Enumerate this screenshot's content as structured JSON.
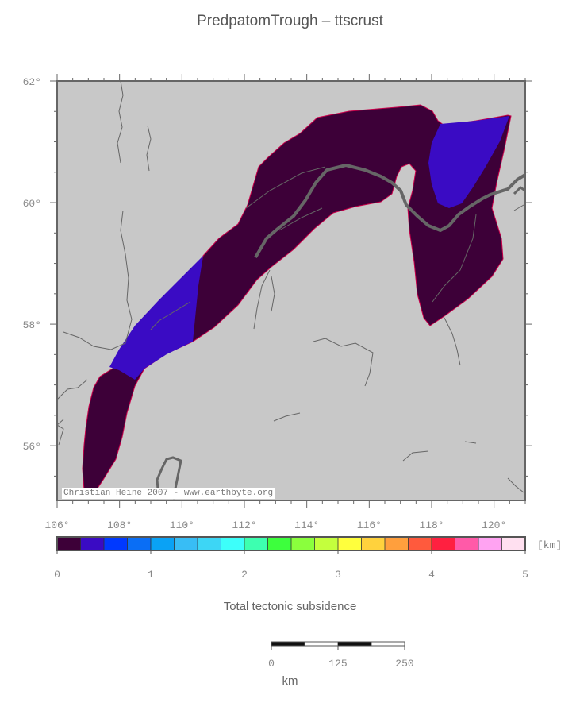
{
  "map": {
    "title": "PredpatomTrough – ttscrust",
    "credit": "Christian Heine 2007 - www.earthbyte.org",
    "lon_ticks": [
      "106°",
      "108°",
      "110°",
      "112°",
      "114°",
      "116°",
      "118°",
      "120°"
    ],
    "lat_ticks": [
      "62°",
      "60°",
      "58°",
      "56°"
    ],
    "extent": {
      "lon": [
        106,
        121
      ],
      "lat": [
        55.1,
        62
      ]
    }
  },
  "colorbar": {
    "label": "Total tectonic subsidence",
    "unit": "[km]",
    "tick_labels": [
      "0",
      "1",
      "2",
      "3",
      "4",
      "5"
    ],
    "range": [
      0,
      5
    ],
    "colors": [
      "#3d0038",
      "#3a0bc4",
      "#0039ff",
      "#0a6ef5",
      "#0aa2f5",
      "#38bdf5",
      "#3dd6f5",
      "#3dfffa",
      "#3dffb0",
      "#3dff3d",
      "#8aff3d",
      "#c4ff3d",
      "#ffff3d",
      "#ffd23d",
      "#ff9f3d",
      "#ff5a3d",
      "#ff2040",
      "#ff5aa8",
      "#ffa3f2",
      "#ffe0f0"
    ]
  },
  "scalebar": {
    "tick_labels": [
      "0",
      "125",
      "250"
    ],
    "unit": "km"
  },
  "colors": {
    "land": "#c8c8c8",
    "basin_deep": "#3d0038",
    "basin_shallow": "#3a0bc4",
    "river": "#666666",
    "frame": "#555555"
  }
}
